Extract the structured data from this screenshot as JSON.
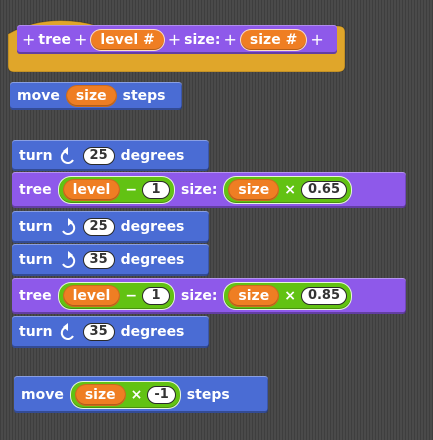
{
  "hat": {
    "plus": "+",
    "tree_label": "tree",
    "level_param": "level #",
    "size_label": "size:",
    "size_param": "size #"
  },
  "move1": {
    "label": "move",
    "var": "size",
    "suffix": "steps"
  },
  "turn1": {
    "label": "turn",
    "direction_icon": "rotate-ccw-icon",
    "value": "25",
    "suffix": "degrees"
  },
  "tree1": {
    "label": "tree",
    "var1": "level",
    "op1": "−",
    "num1": "1",
    "size_label": "size:",
    "var2": "size",
    "op2": "×",
    "num2": "0.65"
  },
  "turn2": {
    "label": "turn",
    "direction_icon": "rotate-cw-icon",
    "value": "25",
    "suffix": "degrees"
  },
  "turn3": {
    "label": "turn",
    "direction_icon": "rotate-cw-icon",
    "value": "35",
    "suffix": "degrees"
  },
  "tree2": {
    "label": "tree",
    "var1": "level",
    "op1": "−",
    "num1": "1",
    "size_label": "size:",
    "var2": "size",
    "op2": "×",
    "num2": "0.85"
  },
  "turn4": {
    "label": "turn",
    "direction_icon": "rotate-ccw-icon",
    "value": "35",
    "suffix": "degrees"
  },
  "move2": {
    "label": "move",
    "var": "size",
    "op": "×",
    "num": "-1",
    "suffix": "steps"
  },
  "colors": {
    "background": "#4a4a4a",
    "motion": "#4a6cd4",
    "custom": "#8e59ea",
    "hat": "#e0a62a",
    "variable": "#ef7e23",
    "operator": "#62c213"
  }
}
